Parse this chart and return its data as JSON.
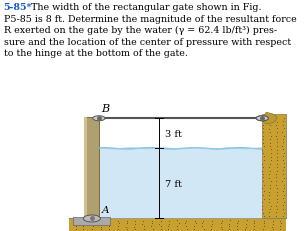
{
  "bg_color": "#ffffff",
  "water_color": "#cce5f5",
  "ground_color": "#c8a030",
  "gate_color": "#b8a878",
  "rod_color": "#777777",
  "text_color": "#000000",
  "title_color": "#1155cc",
  "label_B": "B",
  "label_A": "A",
  "label_3ft": "3 ft",
  "label_7ft": "7 ft",
  "title_number": "5-85*",
  "line1": "  The width of the rectangular gate shown in Fig.",
  "line2": "P5-85 is 8 ft. Determine the magnitude of the resultant force",
  "line3": "R exerted on the gate by the water (γ = 62.4 lb/ft³) pres-",
  "line4": "sure and the location of the center of pressure with respect",
  "line5": "to the hinge at the bottom of the gate."
}
